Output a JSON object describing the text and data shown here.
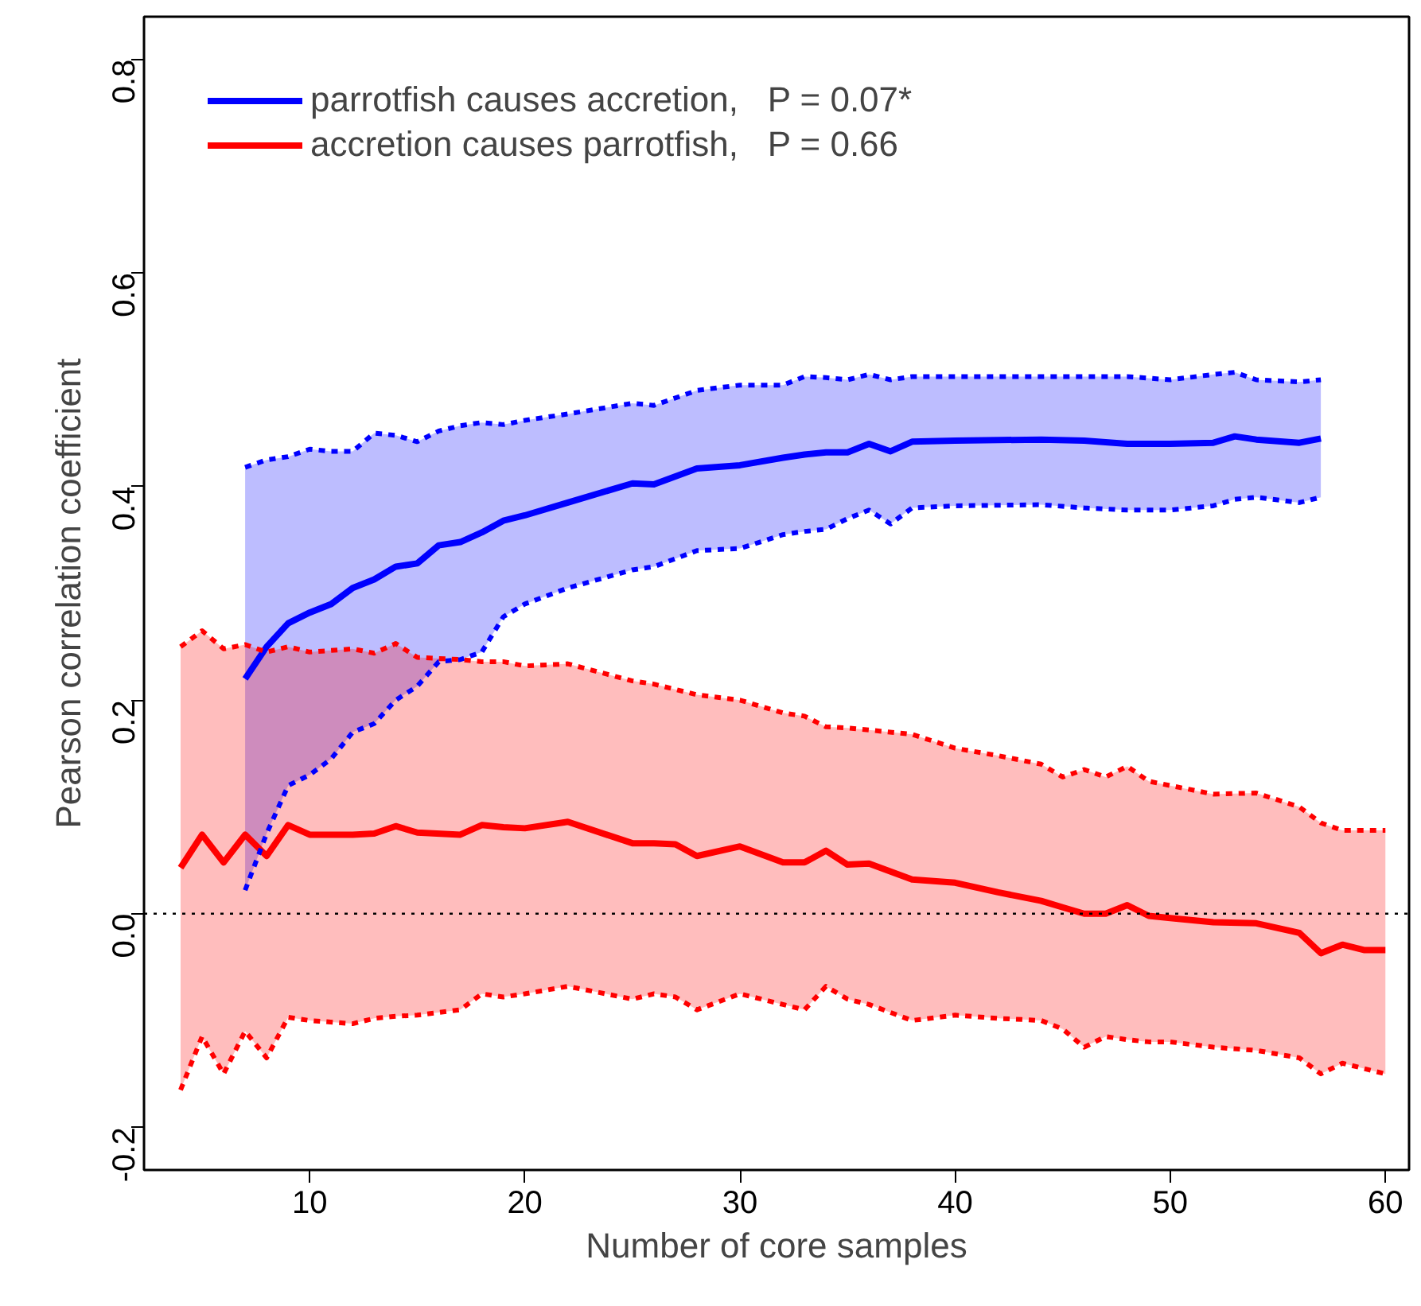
{
  "chart_data": {
    "type": "line",
    "xlabel": "Number of core samples",
    "ylabel": "Pearson correlation coefficient",
    "xlim": [
      2.3,
      61.1
    ],
    "ylim": [
      -0.24,
      0.84
    ],
    "xticks": [
      10,
      20,
      30,
      40,
      50,
      60
    ],
    "yticks": [
      {
        "value": -0.2,
        "label": "-0.2"
      },
      {
        "value": 0.0,
        "label": "0.0"
      },
      {
        "value": 0.2,
        "label": "0.2"
      },
      {
        "value": 0.4,
        "label": "0.4"
      },
      {
        "value": 0.6,
        "label": "0.6"
      },
      {
        "value": 0.8,
        "label": "0.8"
      }
    ],
    "grid": false,
    "legend": "top left",
    "marker": "none",
    "line_style": "solid",
    "ref_lines": [
      {
        "axis": "y",
        "value": 0,
        "color": "#000000",
        "line_style": "dotted"
      }
    ],
    "series": [
      {
        "name": "parrotfish causes accretion,   P = 0.07*",
        "color": "#0000ff",
        "x": [
          7,
          8,
          9,
          10,
          11,
          12,
          13,
          14,
          15,
          16,
          17,
          18,
          19,
          20,
          22,
          25,
          26,
          28,
          30,
          32,
          33,
          34,
          35,
          36,
          37,
          38,
          40,
          44,
          46,
          48,
          50,
          52,
          53,
          54,
          56,
          57
        ],
        "values": [
          0.22,
          0.25,
          0.272,
          0.282,
          0.29,
          0.305,
          0.313,
          0.325,
          0.328,
          0.345,
          0.348,
          0.357,
          0.368,
          0.373,
          0.385,
          0.403,
          0.402,
          0.417,
          0.42,
          0.427,
          0.43,
          0.432,
          0.432,
          0.44,
          0.433,
          0.442,
          0.443,
          0.444,
          0.443,
          0.44,
          0.44,
          0.441,
          0.447,
          0.444,
          0.441,
          0.445
        ],
        "upper": [
          0.418,
          0.425,
          0.428,
          0.435,
          0.433,
          0.433,
          0.45,
          0.448,
          0.442,
          0.452,
          0.457,
          0.46,
          0.458,
          0.462,
          0.468,
          0.478,
          0.476,
          0.49,
          0.495,
          0.495,
          0.503,
          0.502,
          0.5,
          0.505,
          0.5,
          0.503,
          0.503,
          0.503,
          0.503,
          0.503,
          0.5,
          0.505,
          0.507,
          0.5,
          0.498,
          0.5
        ],
        "lower": [
          0.022,
          0.075,
          0.12,
          0.13,
          0.145,
          0.17,
          0.178,
          0.2,
          0.213,
          0.236,
          0.238,
          0.245,
          0.278,
          0.29,
          0.305,
          0.322,
          0.325,
          0.34,
          0.342,
          0.355,
          0.358,
          0.36,
          0.37,
          0.378,
          0.365,
          0.38,
          0.382,
          0.383,
          0.38,
          0.378,
          0.378,
          0.382,
          0.388,
          0.39,
          0.385,
          0.39
        ]
      },
      {
        "name": "accretion causes parrotfish,   P = 0.66",
        "color": "#ff0000",
        "x": [
          4,
          5,
          6,
          7,
          8,
          9,
          10,
          12,
          13,
          14,
          15,
          17,
          18,
          19,
          20,
          22,
          25,
          26,
          27,
          28,
          30,
          32,
          33,
          34,
          35,
          36,
          38,
          40,
          42,
          44,
          45,
          46,
          47,
          48,
          49,
          50,
          52,
          54,
          56,
          57,
          58,
          59,
          60
        ],
        "values": [
          0.043,
          0.074,
          0.048,
          0.074,
          0.054,
          0.083,
          0.074,
          0.074,
          0.075,
          0.082,
          0.076,
          0.074,
          0.083,
          0.081,
          0.08,
          0.086,
          0.066,
          0.066,
          0.065,
          0.054,
          0.063,
          0.048,
          0.048,
          0.059,
          0.046,
          0.047,
          0.032,
          0.029,
          0.02,
          0.012,
          0.006,
          0,
          0,
          0.008,
          -0.002,
          -0.004,
          -0.008,
          -0.009,
          -0.018,
          -0.037,
          -0.029,
          -0.034,
          -0.034
        ],
        "upper": [
          0.25,
          0.265,
          0.248,
          0.252,
          0.245,
          0.25,
          0.245,
          0.248,
          0.244,
          0.253,
          0.24,
          0.238,
          0.236,
          0.236,
          0.232,
          0.234,
          0.218,
          0.215,
          0.21,
          0.205,
          0.2,
          0.188,
          0.185,
          0.175,
          0.174,
          0.172,
          0.168,
          0.155,
          0.148,
          0.14,
          0.128,
          0.135,
          0.128,
          0.138,
          0.124,
          0.12,
          0.112,
          0.113,
          0.1,
          0.085,
          0.078,
          0.078,
          0.078
        ],
        "lower": [
          -0.165,
          -0.115,
          -0.15,
          -0.11,
          -0.135,
          -0.097,
          -0.1,
          -0.103,
          -0.098,
          -0.096,
          -0.095,
          -0.09,
          -0.075,
          -0.078,
          -0.075,
          -0.068,
          -0.08,
          -0.075,
          -0.078,
          -0.09,
          -0.075,
          -0.085,
          -0.09,
          -0.068,
          -0.08,
          -0.085,
          -0.1,
          -0.095,
          -0.098,
          -0.1,
          -0.108,
          -0.125,
          -0.115,
          -0.118,
          -0.12,
          -0.12,
          -0.125,
          -0.128,
          -0.135,
          -0.15,
          -0.14,
          -0.145,
          -0.15
        ]
      },
      {
        "type": "line",
        "line_style": "dotted",
        "color": "#0000ff",
        "x": [
          7,
          8,
          9,
          10,
          11,
          12,
          13,
          14,
          15,
          16,
          17,
          18,
          19,
          20,
          22,
          25,
          26,
          28,
          30,
          32,
          33,
          34,
          35,
          36,
          37,
          38,
          40,
          44,
          46,
          48,
          50,
          52,
          53,
          54,
          56,
          57
        ],
        "values": [
          0.418,
          0.425,
          0.428,
          0.435,
          0.433,
          0.433,
          0.45,
          0.448,
          0.442,
          0.452,
          0.457,
          0.46,
          0.458,
          0.462,
          0.468,
          0.478,
          0.476,
          0.49,
          0.495,
          0.495,
          0.503,
          0.502,
          0.5,
          0.505,
          0.5,
          0.503,
          0.503,
          0.503,
          0.503,
          0.503,
          0.5,
          0.505,
          0.507,
          0.5,
          0.498,
          0.5
        ]
      },
      {
        "type": "line",
        "line_style": "dotted",
        "color": "#0000ff",
        "x": [
          7,
          8,
          9,
          10,
          11,
          12,
          13,
          14,
          15,
          16,
          17,
          18,
          19,
          20,
          22,
          25,
          26,
          28,
          30,
          32,
          33,
          34,
          35,
          36,
          37,
          38,
          40,
          44,
          46,
          48,
          50,
          52,
          53,
          54,
          56,
          57
        ],
        "values": [
          0.022,
          0.075,
          0.12,
          0.13,
          0.145,
          0.17,
          0.178,
          0.2,
          0.213,
          0.236,
          0.238,
          0.245,
          0.278,
          0.29,
          0.305,
          0.322,
          0.325,
          0.34,
          0.342,
          0.355,
          0.358,
          0.36,
          0.37,
          0.378,
          0.365,
          0.38,
          0.382,
          0.383,
          0.38,
          0.378,
          0.378,
          0.382,
          0.388,
          0.39,
          0.385,
          0.39
        ]
      },
      {
        "type": "line",
        "line_style": "dotted",
        "color": "#ff0000",
        "x": [
          4,
          5,
          6,
          7,
          8,
          9,
          10,
          12,
          13,
          14,
          15,
          17,
          18,
          19,
          20,
          22,
          25,
          26,
          27,
          28,
          30,
          32,
          33,
          34,
          35,
          36,
          38,
          40,
          42,
          44,
          45,
          46,
          47,
          48,
          49,
          50,
          52,
          54,
          56,
          57,
          58,
          59,
          60
        ],
        "values": [
          0.25,
          0.265,
          0.248,
          0.252,
          0.245,
          0.25,
          0.245,
          0.248,
          0.244,
          0.253,
          0.24,
          0.238,
          0.236,
          0.236,
          0.232,
          0.234,
          0.218,
          0.215,
          0.21,
          0.205,
          0.2,
          0.188,
          0.185,
          0.175,
          0.174,
          0.172,
          0.168,
          0.155,
          0.148,
          0.14,
          0.128,
          0.135,
          0.128,
          0.138,
          0.124,
          0.12,
          0.112,
          0.113,
          0.1,
          0.085,
          0.078,
          0.078,
          0.078
        ]
      },
      {
        "type": "line",
        "line_style": "dotted",
        "color": "#ff0000",
        "x": [
          4,
          5,
          6,
          7,
          8,
          9,
          10,
          12,
          13,
          14,
          15,
          17,
          18,
          19,
          20,
          22,
          25,
          26,
          27,
          28,
          30,
          32,
          33,
          34,
          35,
          36,
          38,
          40,
          42,
          44,
          45,
          46,
          47,
          48,
          49,
          50,
          52,
          54,
          56,
          57,
          58,
          59,
          60
        ],
        "values": [
          -0.165,
          -0.115,
          -0.15,
          -0.11,
          -0.135,
          -0.097,
          -0.1,
          -0.103,
          -0.098,
          -0.096,
          -0.095,
          -0.09,
          -0.075,
          -0.078,
          -0.075,
          -0.068,
          -0.08,
          -0.075,
          -0.078,
          -0.09,
          -0.075,
          -0.085,
          -0.09,
          -0.068,
          -0.08,
          -0.085,
          -0.1,
          -0.095,
          -0.098,
          -0.1,
          -0.108,
          -0.125,
          -0.115,
          -0.118,
          -0.12,
          -0.12,
          -0.125,
          -0.128,
          -0.135,
          -0.15,
          -0.14,
          -0.145,
          -0.15
        ]
      }
    ]
  }
}
